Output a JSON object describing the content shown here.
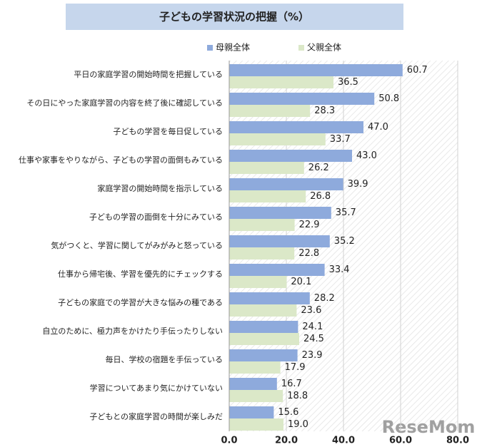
{
  "chart_data": {
    "type": "bar",
    "orientation": "horizontal",
    "title": "子どもの学習状況の把握（%）",
    "categories": [
      "平日の家庭学習の開始時間を把握している",
      "その日にやった家庭学習の内容を終了後に確認している",
      "子どもの学習を毎日促している",
      "仕事や家事をやりながら、子どもの学習の面倒もみている",
      "家庭学習の開始時間を指示している",
      "子どもの学習の面倒を十分にみている",
      "気がつくと、学習に関してがみがみと怒っている",
      "仕事から帰宅後、学習を優先的にチェックする",
      "子どもの家庭での学習が大きな悩みの種である",
      "自立のために、極力声をかけたり手伝ったりしない",
      "毎日、学校の宿題を手伝っている",
      "学習についてあまり気にかけていない",
      "子どもとの家庭学習の時間が楽しみだ"
    ],
    "series": [
      {
        "name": "母親全体",
        "color": "#8eaadc",
        "values": [
          60.7,
          50.8,
          47.0,
          43.0,
          39.9,
          35.7,
          35.2,
          33.4,
          28.2,
          24.1,
          23.9,
          16.7,
          15.6
        ],
        "value_labels": [
          "60.7",
          "50.8",
          "47.0",
          "43.0",
          "39.9",
          "35.7",
          "35.2",
          "33.4",
          "28.2",
          "24.1",
          "23.9",
          "16.7",
          "15.6"
        ]
      },
      {
        "name": "父親全体",
        "color": "#dbe8c8",
        "values": [
          36.5,
          28.3,
          33.7,
          26.2,
          26.8,
          22.9,
          22.8,
          20.1,
          23.6,
          24.5,
          17.9,
          18.8,
          19.0
        ],
        "value_labels": [
          "36.5",
          "28.3",
          "33.7",
          "26.2",
          "26.8",
          "22.9",
          "22.8",
          "20.1",
          "23.6",
          "24.5",
          "17.9",
          "18.8",
          "19.0"
        ]
      }
    ],
    "xlim": [
      0,
      80
    ],
    "xticks": [
      {
        "value": 0,
        "label": "0.0"
      },
      {
        "value": 20,
        "label": "20.0"
      },
      {
        "value": 40,
        "label": "40.0"
      },
      {
        "value": 60,
        "label": "60.0"
      },
      {
        "value": 80,
        "label": "80.0"
      }
    ],
    "grid": true,
    "legend": "top",
    "watermark": "ReseMom"
  }
}
